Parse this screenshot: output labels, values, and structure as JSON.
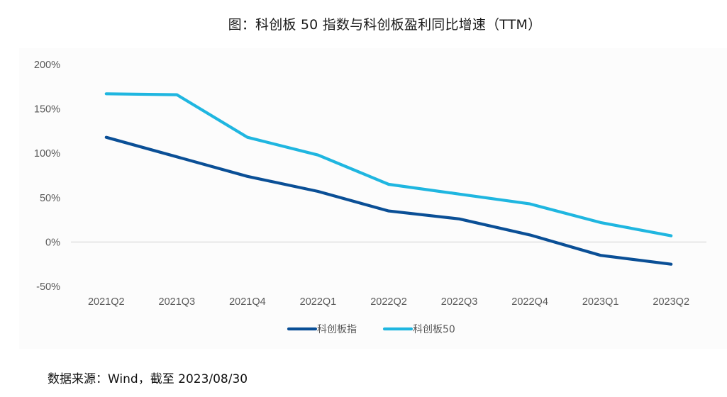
{
  "chart_data": {
    "type": "line",
    "title": "图：科创板 50 指数与科创板盈利同比增速（TTM）",
    "xlabel": "",
    "ylabel": "",
    "categories": [
      "2021Q2",
      "2021Q3",
      "2021Q4",
      "2022Q1",
      "2022Q2",
      "2022Q3",
      "2022Q4",
      "2023Q1",
      "2023Q2"
    ],
    "series": [
      {
        "name": "科创板指",
        "color": "#0a4f96",
        "values": [
          118,
          96,
          74,
          57,
          35,
          26,
          8,
          -15,
          -25
        ]
      },
      {
        "name": "科创板50",
        "color": "#1fb6e0",
        "values": [
          167,
          166,
          118,
          98,
          65,
          54,
          43,
          22,
          7
        ]
      }
    ],
    "ylim": [
      -50,
      200
    ],
    "yticks": [
      200,
      150,
      100,
      50,
      0,
      -50
    ],
    "ytick_labels": [
      "200%",
      "150%",
      "100%",
      "50%",
      "0%",
      "-50%"
    ],
    "value_unit": "%",
    "grid": false,
    "zero_line": true,
    "legend_position": "bottom-center"
  },
  "footer": {
    "source": "数据来源：Wind，截至 2023/08/30"
  },
  "colors": {
    "axis_text": "#595959",
    "zero_line": "#d9d9d9",
    "panel_background": "#fcfcfc"
  }
}
